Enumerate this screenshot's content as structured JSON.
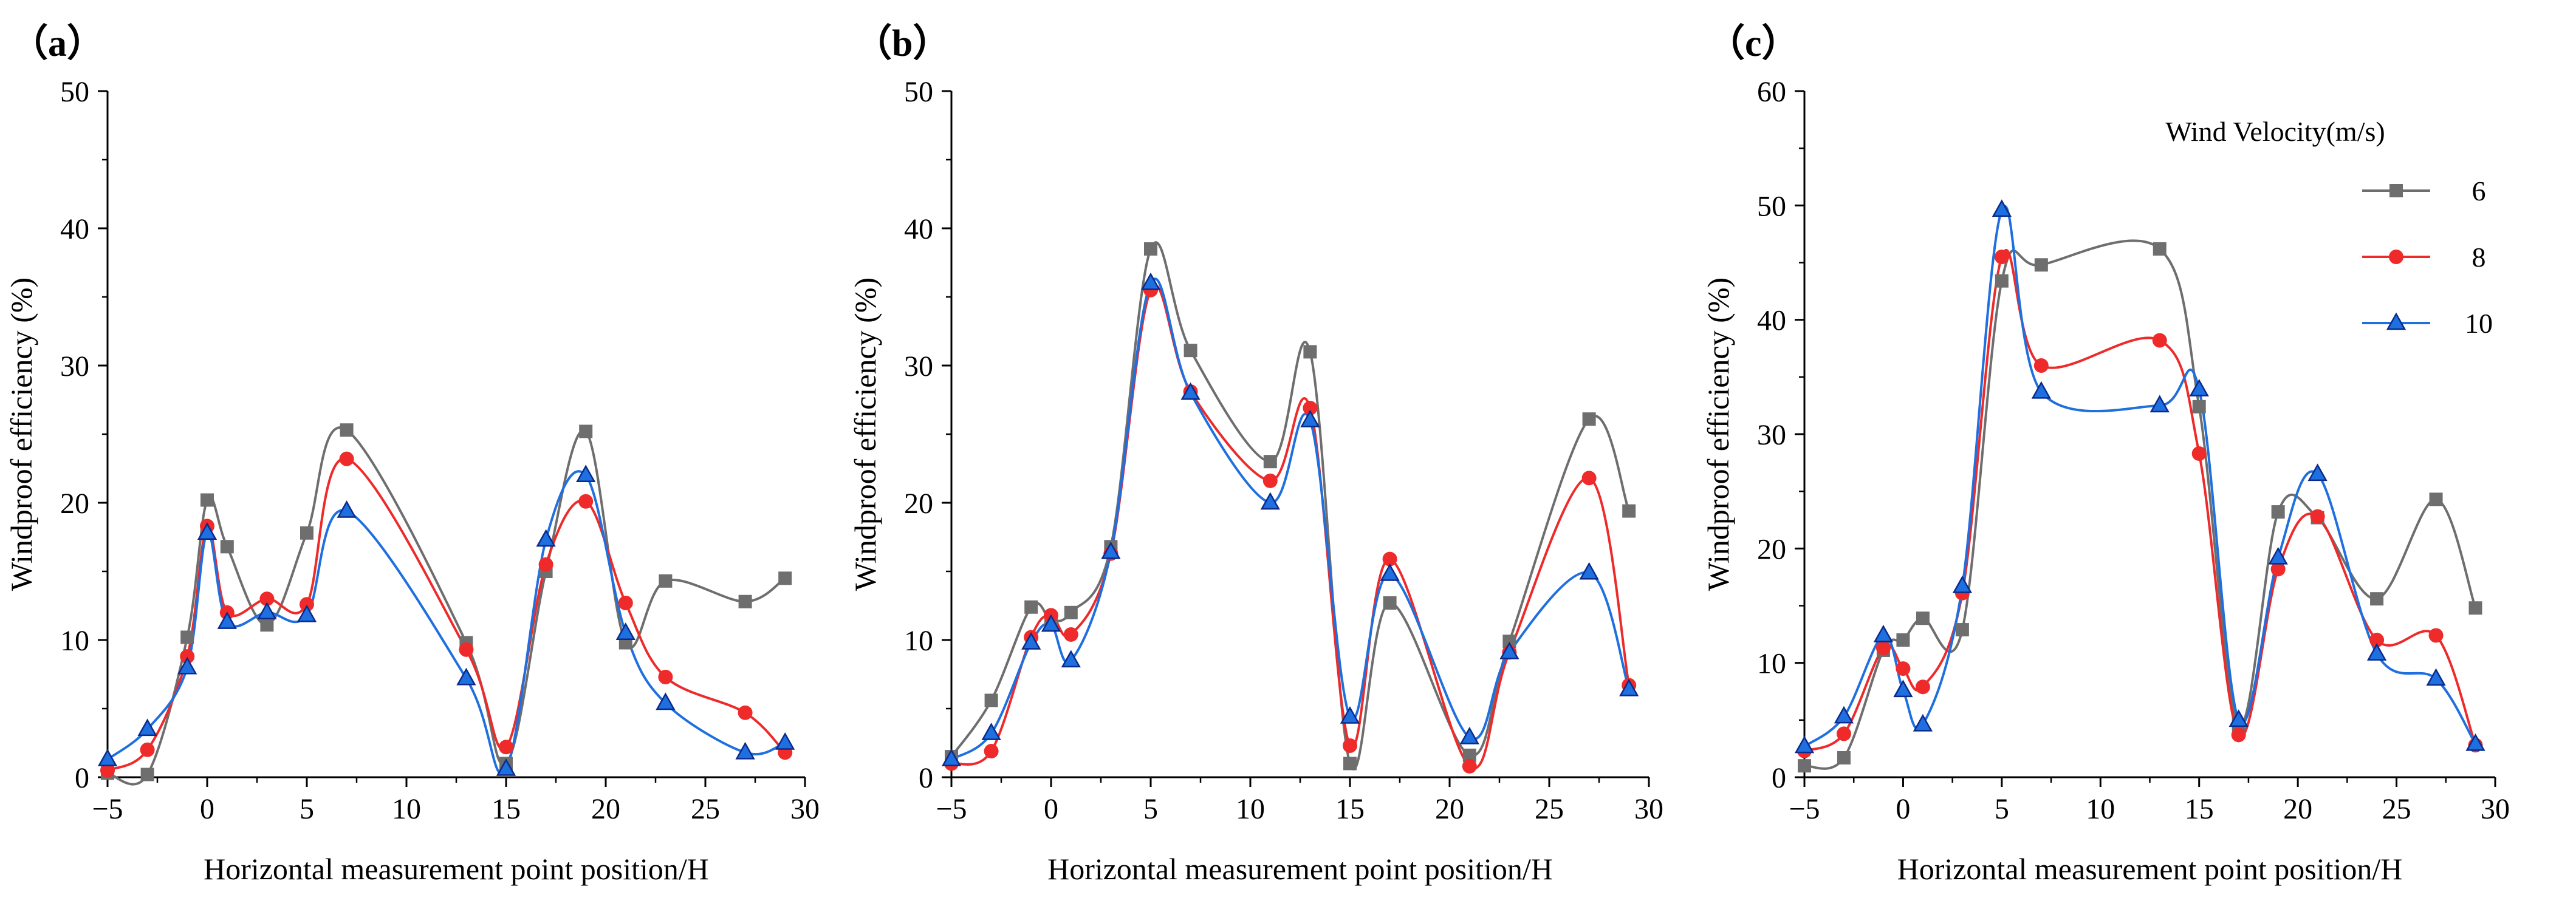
{
  "figure": {
    "legend": {
      "title": "Wind Velocity(m/s)",
      "entries": [
        "6",
        "8",
        "10"
      ],
      "placement": "top-right of panel (c)"
    }
  },
  "series_styles": [
    {
      "name": "6",
      "color": "#6e6e6e",
      "marker": "square"
    },
    {
      "name": "8",
      "color": "#ee2a2a",
      "marker": "circle"
    },
    {
      "name": "10",
      "color": "#1e6fe0",
      "marker": "triangle"
    }
  ],
  "chart_data": [
    {
      "type": "line",
      "panel_label": "（a）",
      "title": "",
      "xlabel": "Horizontal measurement point position/H",
      "ylabel": "Windproof efficiency (%)",
      "xlim": [
        -5,
        30
      ],
      "ylim": [
        0,
        50
      ],
      "xticks": [
        -5,
        0,
        5,
        10,
        15,
        20,
        25,
        30
      ],
      "yticks": [
        0,
        10,
        20,
        30,
        40,
        50
      ],
      "series": [
        {
          "name": "6",
          "x": [
            -5,
            -3,
            -1,
            0,
            1,
            3,
            5,
            7,
            13,
            15,
            17,
            19,
            21,
            23,
            27,
            29
          ],
          "values": [
            0.3,
            0.2,
            10.2,
            20.2,
            16.8,
            11.1,
            17.8,
            25.3,
            9.8,
            1.0,
            15.0,
            25.2,
            9.8,
            14.3,
            12.8,
            14.5
          ]
        },
        {
          "name": "8",
          "x": [
            -5,
            -3,
            -1,
            0,
            1,
            3,
            5,
            7,
            13,
            15,
            17,
            19,
            21,
            23,
            27,
            29
          ],
          "values": [
            0.5,
            2.0,
            8.8,
            18.3,
            12.0,
            13.0,
            12.6,
            23.2,
            9.3,
            2.2,
            15.5,
            20.1,
            12.7,
            7.3,
            4.7,
            1.8
          ]
        },
        {
          "name": "10",
          "x": [
            -5,
            -3,
            -1,
            0,
            1,
            3,
            5,
            7,
            13,
            15,
            17,
            19,
            21,
            23,
            27,
            29
          ],
          "values": [
            1.3,
            3.5,
            8.0,
            17.8,
            11.3,
            12.0,
            11.8,
            19.4,
            7.2,
            0.6,
            17.3,
            22.0,
            10.5,
            5.4,
            1.8,
            2.5
          ]
        }
      ]
    },
    {
      "type": "line",
      "panel_label": "（b）",
      "title": "",
      "xlabel": "Horizontal measurement point position/H",
      "ylabel": "Windproof efficiency (%)",
      "xlim": [
        -5,
        30
      ],
      "ylim": [
        0,
        50
      ],
      "xticks": [
        -5,
        0,
        5,
        10,
        15,
        20,
        25,
        30
      ],
      "yticks": [
        0,
        10,
        20,
        30,
        40,
        50
      ],
      "series": [
        {
          "name": "6",
          "x": [
            -5,
            -3,
            -1,
            0,
            1,
            3,
            5,
            7,
            11,
            13,
            15,
            17,
            21,
            23,
            27,
            29
          ],
          "values": [
            1.5,
            5.6,
            12.4,
            11.5,
            12.0,
            16.8,
            38.5,
            31.1,
            23.0,
            31.0,
            1.0,
            12.7,
            1.6,
            9.9,
            26.1,
            19.4
          ]
        },
        {
          "name": "8",
          "x": [
            -5,
            -3,
            -1,
            0,
            1,
            3,
            5,
            7,
            11,
            13,
            15,
            17,
            21,
            23,
            27,
            29
          ],
          "values": [
            1.0,
            1.9,
            10.2,
            11.8,
            10.4,
            16.3,
            35.5,
            28.1,
            21.6,
            26.9,
            2.3,
            15.9,
            0.8,
            9.1,
            21.8,
            6.7
          ]
        },
        {
          "name": "10",
          "x": [
            -5,
            -3,
            -1,
            0,
            1,
            3,
            5,
            7,
            11,
            13,
            15,
            17,
            21,
            23,
            27,
            29
          ],
          "values": [
            1.3,
            3.2,
            9.8,
            11.1,
            8.5,
            16.4,
            36.0,
            28.0,
            20.0,
            26.0,
            4.4,
            14.8,
            2.9,
            9.1,
            14.9,
            6.4
          ]
        }
      ]
    },
    {
      "type": "line",
      "panel_label": "（c）",
      "title": "",
      "xlabel": "Horizontal measurement point position/H",
      "ylabel": "Windproof efficiency (%)",
      "xlim": [
        -5,
        30
      ],
      "ylim": [
        0,
        60
      ],
      "xticks": [
        -5,
        0,
        5,
        10,
        15,
        20,
        25,
        30
      ],
      "yticks": [
        0,
        10,
        20,
        30,
        40,
        50,
        60
      ],
      "series": [
        {
          "name": "6",
          "x": [
            -5,
            -3,
            -1,
            0,
            1,
            3,
            5,
            7,
            13,
            15,
            17,
            19,
            21,
            24,
            27,
            29
          ],
          "values": [
            1.0,
            1.7,
            11.1,
            12.0,
            13.9,
            12.9,
            43.4,
            44.8,
            46.2,
            32.4,
            4.6,
            23.2,
            22.7,
            15.6,
            24.3,
            14.8
          ]
        },
        {
          "name": "8",
          "x": [
            -5,
            -3,
            -1,
            0,
            1,
            3,
            5,
            7,
            13,
            15,
            17,
            19,
            21,
            24,
            27,
            29
          ],
          "values": [
            2.3,
            3.8,
            11.3,
            9.5,
            7.9,
            16.1,
            45.5,
            36.0,
            38.2,
            28.3,
            3.7,
            18.2,
            22.8,
            12.0,
            12.4,
            2.8
          ]
        },
        {
          "name": "10",
          "x": [
            -5,
            -3,
            -1,
            0,
            1,
            3,
            5,
            7,
            13,
            15,
            17,
            19,
            21,
            24,
            27,
            29
          ],
          "values": [
            2.7,
            5.3,
            12.4,
            7.6,
            4.6,
            16.7,
            49.6,
            33.7,
            32.5,
            33.9,
            5.0,
            19.2,
            26.5,
            10.8,
            8.6,
            2.9
          ]
        }
      ]
    }
  ]
}
